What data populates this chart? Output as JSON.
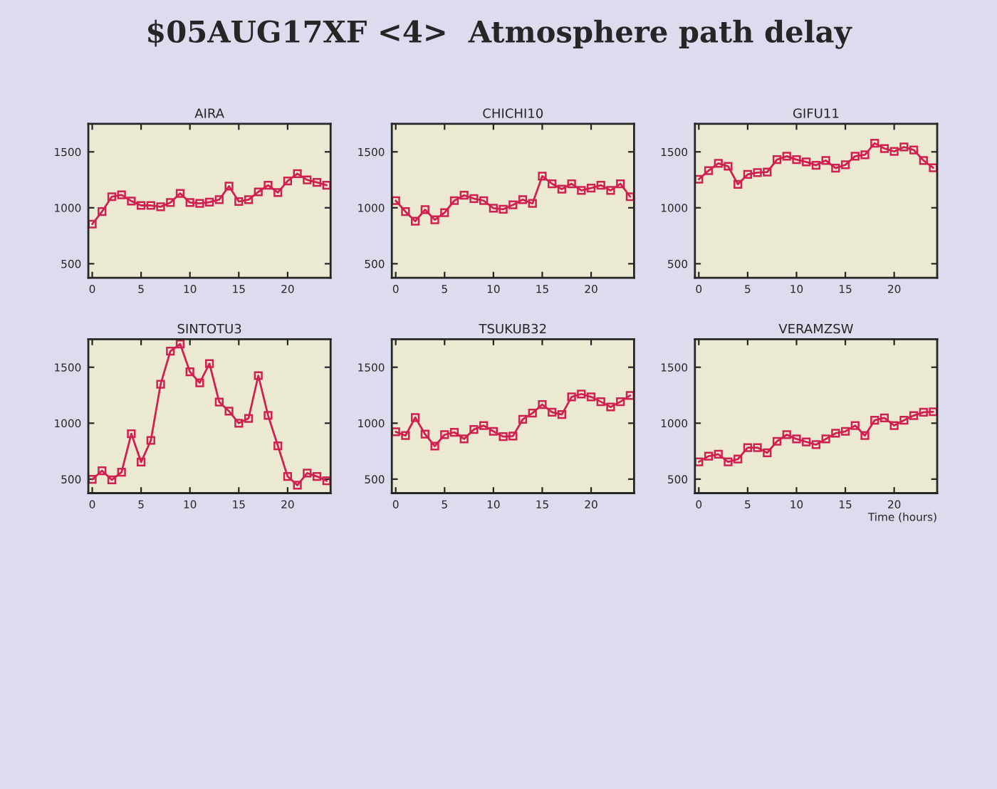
{
  "chart_data": [
    {
      "type": "line",
      "title": "AIRA",
      "annotations": [
        "$05AUG17XF <4>  Atmosphere path delay"
      ],
      "color": "#d0204f",
      "marker": "square",
      "grid": false,
      "xlim": [
        -0.4,
        24.4
      ],
      "ylim": [
        375,
        1750
      ],
      "xticks": [
        0,
        5,
        10,
        15,
        20
      ],
      "yticks": [
        500,
        1000,
        1500
      ],
      "x": [
        0,
        1,
        2,
        3,
        4,
        5,
        6,
        7,
        8,
        9,
        10,
        11,
        12,
        13,
        14,
        15,
        16,
        17,
        18,
        19,
        20,
        21,
        22,
        23,
        24
      ],
      "values": [
        854,
        966,
        1099,
        1116,
        1060,
        1021,
        1021,
        1009,
        1047,
        1129,
        1047,
        1039,
        1051,
        1073,
        1193,
        1056,
        1073,
        1142,
        1202,
        1137,
        1240,
        1305,
        1249,
        1227,
        1202
      ]
    },
    {
      "type": "line",
      "title": "CHICHI10",
      "color": "#d0204f",
      "marker": "square",
      "grid": false,
      "xlim": [
        -0.4,
        24.4
      ],
      "ylim": [
        375,
        1750
      ],
      "xticks": [
        0,
        5,
        10,
        15,
        20
      ],
      "yticks": [
        500,
        1000,
        1500
      ],
      "x": [
        0,
        1,
        2,
        3,
        4,
        5,
        6,
        7,
        8,
        9,
        10,
        11,
        12,
        13,
        14,
        15,
        16,
        17,
        18,
        19,
        20,
        21,
        22,
        23,
        24
      ],
      "values": [
        1064,
        966,
        880,
        983,
        893,
        957,
        1064,
        1112,
        1082,
        1064,
        996,
        987,
        1026,
        1073,
        1039,
        1283,
        1215,
        1167,
        1215,
        1155,
        1176,
        1202,
        1155,
        1215,
        1099
      ]
    },
    {
      "type": "line",
      "title": "GIFU11",
      "color": "#d0204f",
      "marker": "square",
      "grid": false,
      "xlim": [
        -0.4,
        24.4
      ],
      "ylim": [
        375,
        1750
      ],
      "xticks": [
        0,
        5,
        10,
        15,
        20
      ],
      "yticks": [
        500,
        1000,
        1500
      ],
      "x": [
        0,
        1,
        2,
        3,
        4,
        5,
        6,
        7,
        8,
        9,
        10,
        11,
        12,
        13,
        14,
        15,
        16,
        17,
        18,
        19,
        20,
        21,
        22,
        23,
        24
      ],
      "values": [
        1255,
        1332,
        1397,
        1371,
        1210,
        1298,
        1315,
        1319,
        1431,
        1461,
        1431,
        1410,
        1380,
        1423,
        1354,
        1384,
        1461,
        1474,
        1577,
        1530,
        1504,
        1543,
        1517,
        1423,
        1358
      ]
    },
    {
      "type": "line",
      "title": "SINTOTU3",
      "color": "#d0204f",
      "marker": "square",
      "grid": false,
      "xlim": [
        -0.4,
        24.4
      ],
      "ylim": [
        375,
        1750
      ],
      "xticks": [
        0,
        5,
        10,
        15,
        20
      ],
      "yticks": [
        500,
        1000,
        1500
      ],
      "x": [
        0,
        1,
        2,
        3,
        4,
        5,
        6,
        7,
        8,
        9,
        10,
        11,
        12,
        13,
        14,
        15,
        16,
        17,
        18,
        19,
        20,
        21,
        22,
        23,
        24
      ],
      "values": [
        498,
        575,
        494,
        562,
        906,
        653,
        846,
        1348,
        1644,
        1708,
        1459,
        1361,
        1532,
        1189,
        1107,
        1000,
        1043,
        1425,
        1069,
        798,
        524,
        446,
        554,
        524,
        485
      ]
    },
    {
      "type": "line",
      "title": "TSUKUB32",
      "color": "#d0204f",
      "marker": "square",
      "grid": false,
      "xlim": [
        -0.4,
        24.4
      ],
      "ylim": [
        375,
        1750
      ],
      "xticks": [
        0,
        5,
        10,
        15,
        20
      ],
      "yticks": [
        500,
        1000,
        1500
      ],
      "x": [
        0,
        1,
        2,
        3,
        4,
        5,
        6,
        7,
        8,
        9,
        10,
        11,
        12,
        13,
        14,
        15,
        16,
        17,
        18,
        19,
        20,
        21,
        22,
        23,
        24
      ],
      "values": [
        923,
        889,
        1051,
        902,
        795,
        897,
        919,
        859,
        944,
        979,
        927,
        880,
        885,
        1034,
        1090,
        1167,
        1098,
        1077,
        1235,
        1261,
        1235,
        1192,
        1145,
        1192,
        1248
      ]
    },
    {
      "type": "line",
      "title": "VERAMZSW",
      "xlabel": "Time (hours)",
      "color": "#d0204f",
      "marker": "square",
      "grid": false,
      "xlim": [
        -0.4,
        24.4
      ],
      "ylim": [
        375,
        1750
      ],
      "xticks": [
        0,
        5,
        10,
        15,
        20
      ],
      "yticks": [
        500,
        1000,
        1500
      ],
      "x": [
        0,
        1,
        2,
        3,
        4,
        5,
        6,
        7,
        8,
        9,
        10,
        11,
        12,
        13,
        14,
        15,
        16,
        17,
        18,
        19,
        20,
        21,
        22,
        23,
        24
      ],
      "values": [
        654,
        705,
        722,
        654,
        679,
        782,
        782,
        735,
        838,
        897,
        859,
        833,
        808,
        859,
        910,
        927,
        979,
        889,
        1026,
        1047,
        979,
        1026,
        1068,
        1098,
        1102
      ]
    }
  ]
}
